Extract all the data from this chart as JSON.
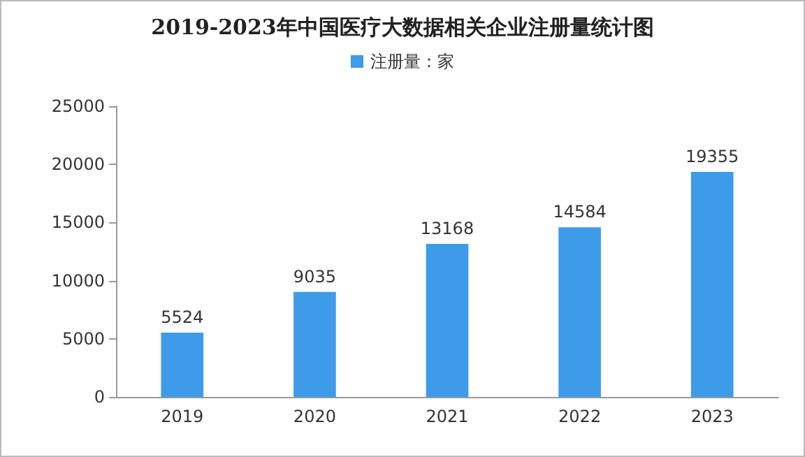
{
  "chart_data": {
    "type": "bar",
    "title": "2019-2023年中国医疗大数据相关企业注册量统计图",
    "categories": [
      "2019",
      "2020",
      "2021",
      "2022",
      "2023"
    ],
    "series": [
      {
        "name": "注册量：家",
        "color": "#3d9be9",
        "values": [
          5524,
          9035,
          13168,
          14584,
          19355
        ]
      }
    ],
    "ylim": [
      0,
      25000
    ],
    "yticks": [
      0,
      5000,
      10000,
      15000,
      20000,
      25000
    ],
    "data_labels": true,
    "legend": "top",
    "grid": false
  }
}
